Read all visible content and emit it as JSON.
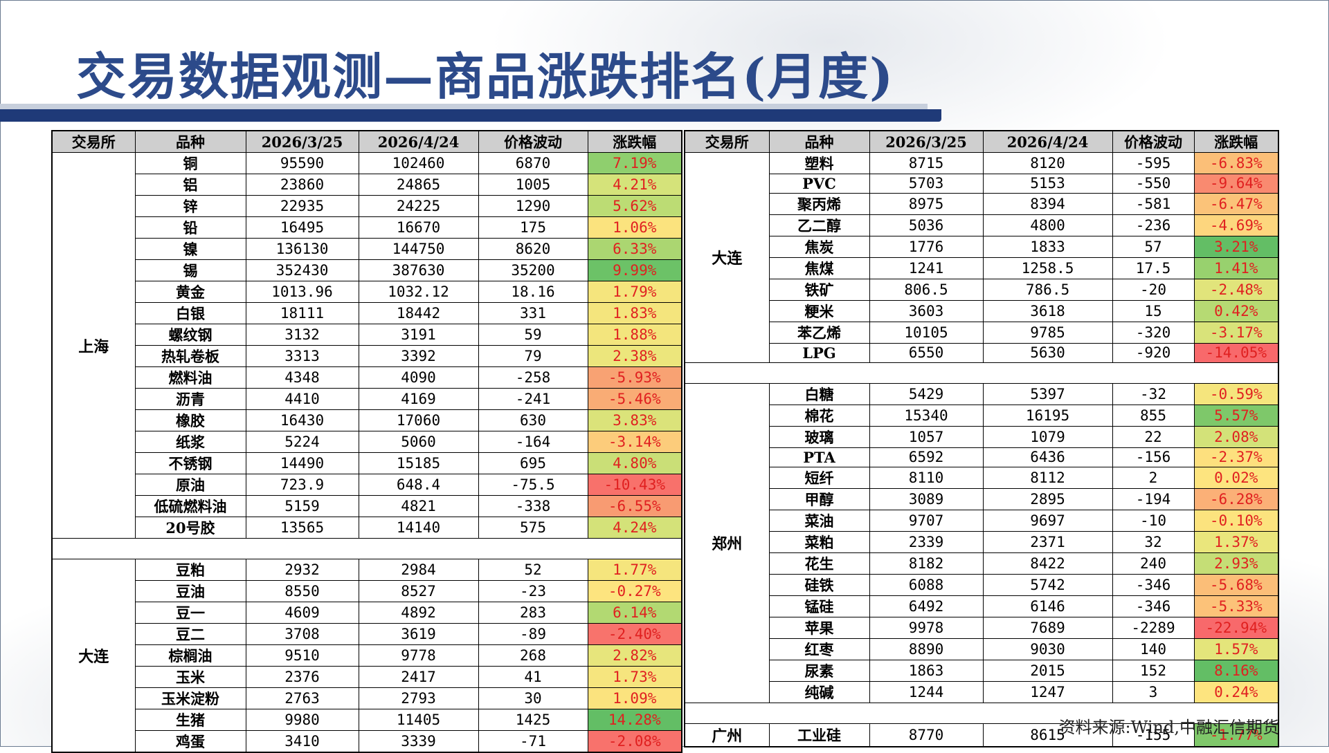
{
  "title": "交易数据观测—商品涨跌排名(月度)",
  "headers": [
    "交易所",
    "品种",
    "2026/3/25",
    "2026/4/24",
    "价格波动",
    "涨跌幅"
  ],
  "left_table": {
    "groups": [
      {
        "exchange": "上海",
        "rows": [
          {
            "name": "铜",
            "v1": "95590",
            "v2": "102460",
            "chg": "6870",
            "pct": "7.19%",
            "color": "#8fcf6e"
          },
          {
            "name": "铝",
            "v1": "23860",
            "v2": "24865",
            "chg": "1005",
            "pct": "4.21%",
            "color": "#d5e37a"
          },
          {
            "name": "锌",
            "v1": "22935",
            "v2": "24225",
            "chg": "1290",
            "pct": "5.62%",
            "color": "#bcdc74"
          },
          {
            "name": "铅",
            "v1": "16495",
            "v2": "16670",
            "chg": "175",
            "pct": "1.06%",
            "color": "#fbe37e"
          },
          {
            "name": "镍",
            "v1": "136130",
            "v2": "144750",
            "chg": "8620",
            "pct": "6.33%",
            "color": "#abd671"
          },
          {
            "name": "锡",
            "v1": "352430",
            "v2": "387630",
            "chg": "35200",
            "pct": "9.99%",
            "color": "#6cc267"
          },
          {
            "name": "黄金",
            "v1": "1013.96",
            "v2": "1032.12",
            "chg": "18.16",
            "pct": "1.79%",
            "color": "#f5e57d"
          },
          {
            "name": "白银",
            "v1": "18111",
            "v2": "18442",
            "chg": "331",
            "pct": "1.83%",
            "color": "#f4e57d"
          },
          {
            "name": "螺纹钢",
            "v1": "3132",
            "v2": "3191",
            "chg": "59",
            "pct": "1.88%",
            "color": "#f3e57d"
          },
          {
            "name": "热轧卷板",
            "v1": "3313",
            "v2": "3392",
            "chg": "79",
            "pct": "2.38%",
            "color": "#ece67c"
          },
          {
            "name": "燃料油",
            "v1": "4348",
            "v2": "4090",
            "chg": "-258",
            "pct": "-5.93%",
            "color": "#f8a273"
          },
          {
            "name": "沥青",
            "v1": "4410",
            "v2": "4169",
            "chg": "-241",
            "pct": "-5.46%",
            "color": "#f9ac75"
          },
          {
            "name": "橡胶",
            "v1": "16430",
            "v2": "17060",
            "chg": "630",
            "pct": "3.83%",
            "color": "#dbe37a"
          },
          {
            "name": "纸浆",
            "v1": "5224",
            "v2": "5060",
            "chg": "-164",
            "pct": "-3.14%",
            "color": "#fccc7b"
          },
          {
            "name": "不锈钢",
            "v1": "14490",
            "v2": "15185",
            "chg": "695",
            "pct": "4.80%",
            "color": "#cadf77"
          },
          {
            "name": "原油",
            "v1": "723.9",
            "v2": "648.4",
            "chg": "-75.5",
            "pct": "-10.43%",
            "color": "#f8716b"
          },
          {
            "name": "低硫燃料油",
            "v1": "5159",
            "v2": "4821",
            "chg": "-338",
            "pct": "-6.55%",
            "color": "#f89b72"
          },
          {
            "name": "20号胶",
            "v1": "13565",
            "v2": "14140",
            "chg": "575",
            "pct": "4.24%",
            "color": "#d4e279"
          }
        ]
      },
      {
        "exchange": "大连",
        "rows": [
          {
            "name": "豆粕",
            "v1": "2932",
            "v2": "2984",
            "chg": "52",
            "pct": "1.77%",
            "color": "#f5e57d"
          },
          {
            "name": "豆油",
            "v1": "8550",
            "v2": "8527",
            "chg": "-23",
            "pct": "-0.27%",
            "color": "#fde47f"
          },
          {
            "name": "豆一",
            "v1": "4609",
            "v2": "4892",
            "chg": "283",
            "pct": "6.14%",
            "color": "#b2d972"
          },
          {
            "name": "豆二",
            "v1": "3708",
            "v2": "3619",
            "chg": "-89",
            "pct": "-2.40%",
            "color": "#f8736c"
          },
          {
            "name": "棕榈油",
            "v1": "9510",
            "v2": "9778",
            "chg": "268",
            "pct": "2.82%",
            "color": "#e7e57c"
          },
          {
            "name": "玉米",
            "v1": "2376",
            "v2": "2417",
            "chg": "41",
            "pct": "1.73%",
            "color": "#f6e57e"
          },
          {
            "name": "玉米淀粉",
            "v1": "2763",
            "v2": "2793",
            "chg": "30",
            "pct": "1.09%",
            "color": "#fbe37e"
          },
          {
            "name": "生猪",
            "v1": "9980",
            "v2": "11405",
            "chg": "1425",
            "pct": "14.28%",
            "color": "#63be65"
          },
          {
            "name": "鸡蛋",
            "v1": "3410",
            "v2": "3339",
            "chg": "-71",
            "pct": "-2.08%",
            "color": "#f8726c"
          }
        ]
      }
    ]
  },
  "right_table": {
    "groups": [
      {
        "exchange": "大连",
        "rows": [
          {
            "name": "塑料",
            "v1": "8715",
            "v2": "8120",
            "chg": "-595",
            "pct": "-6.83%",
            "color": "#fbbf78"
          },
          {
            "name": "PVC",
            "v1": "5703",
            "v2": "5153",
            "chg": "-550",
            "pct": "-9.64%",
            "color": "#f98a70"
          },
          {
            "name": "聚丙烯",
            "v1": "8975",
            "v2": "8394",
            "chg": "-581",
            "pct": "-6.47%",
            "color": "#fbc379"
          },
          {
            "name": "乙二醇",
            "v1": "5036",
            "v2": "4800",
            "chg": "-236",
            "pct": "-4.69%",
            "color": "#fdd67e"
          },
          {
            "name": "焦炭",
            "v1": "1776",
            "v2": "1833",
            "chg": "57",
            "pct": "3.21%",
            "color": "#63be65"
          },
          {
            "name": "焦煤",
            "v1": "1241",
            "v2": "1258.5",
            "chg": "17.5",
            "pct": "1.41%",
            "color": "#98d16e"
          },
          {
            "name": "铁矿",
            "v1": "806.5",
            "v2": "786.5",
            "chg": "-20",
            "pct": "-2.48%",
            "color": "#e1e47b"
          },
          {
            "name": "粳米",
            "v1": "3603",
            "v2": "3618",
            "chg": "15",
            "pct": "0.42%",
            "color": "#b6da73"
          },
          {
            "name": "苯乙烯",
            "v1": "10105",
            "v2": "9785",
            "chg": "-320",
            "pct": "-3.17%",
            "color": "#d9e37a"
          },
          {
            "name": "LPG",
            "v1": "6550",
            "v2": "5630",
            "chg": "-920",
            "pct": "-14.05%",
            "color": "#f8696b"
          }
        ]
      },
      {
        "exchange": "郑州",
        "rows": [
          {
            "name": "白糖",
            "v1": "5429",
            "v2": "5397",
            "chg": "-32",
            "pct": "-0.59%",
            "color": "#f5e57d"
          },
          {
            "name": "棉花",
            "v1": "15340",
            "v2": "16195",
            "chg": "855",
            "pct": "5.57%",
            "color": "#7ec86a"
          },
          {
            "name": "玻璃",
            "v1": "1057",
            "v2": "1079",
            "chg": "22",
            "pct": "2.08%",
            "color": "#d3e279"
          },
          {
            "name": "PTA",
            "v1": "6592",
            "v2": "6436",
            "chg": "-156",
            "pct": "-2.37%",
            "color": "#fde07e"
          },
          {
            "name": "短纤",
            "v1": "8110",
            "v2": "8112",
            "chg": "2",
            "pct": "0.02%",
            "color": "#fde47f"
          },
          {
            "name": "甲醇",
            "v1": "3089",
            "v2": "2895",
            "chg": "-194",
            "pct": "-6.28%",
            "color": "#fbb077"
          },
          {
            "name": "菜油",
            "v1": "9707",
            "v2": "9697",
            "chg": "-10",
            "pct": "-0.10%",
            "color": "#fce37e"
          },
          {
            "name": "菜粕",
            "v1": "2339",
            "v2": "2371",
            "chg": "32",
            "pct": "1.37%",
            "color": "#eae67c"
          },
          {
            "name": "花生",
            "v1": "8182",
            "v2": "8422",
            "chg": "240",
            "pct": "2.93%",
            "color": "#c5de76"
          },
          {
            "name": "硅铁",
            "v1": "6088",
            "v2": "5742",
            "chg": "-346",
            "pct": "-5.68%",
            "color": "#fbbe78"
          },
          {
            "name": "锰硅",
            "v1": "6492",
            "v2": "6146",
            "chg": "-346",
            "pct": "-5.33%",
            "color": "#fcc279"
          },
          {
            "name": "苹果",
            "v1": "9978",
            "v2": "7689",
            "chg": "-2289",
            "pct": "-22.94%",
            "color": "#f8696b"
          },
          {
            "name": "红枣",
            "v1": "8890",
            "v2": "9030",
            "chg": "140",
            "pct": "1.57%",
            "color": "#e4e57b"
          },
          {
            "name": "尿素",
            "v1": "1863",
            "v2": "2015",
            "chg": "152",
            "pct": "8.16%",
            "color": "#63be65"
          },
          {
            "name": "纯碱",
            "v1": "1244",
            "v2": "1247",
            "chg": "3",
            "pct": "0.24%",
            "color": "#fde47f"
          }
        ]
      },
      {
        "exchange": "广州",
        "rows": [
          {
            "name": "工业硅",
            "v1": "8770",
            "v2": "8615",
            "chg": "-155",
            "pct": "-1.77%",
            "color": "#7fc86a"
          }
        ]
      }
    ]
  },
  "source": "资料来源:Wind,中融汇信期货"
}
